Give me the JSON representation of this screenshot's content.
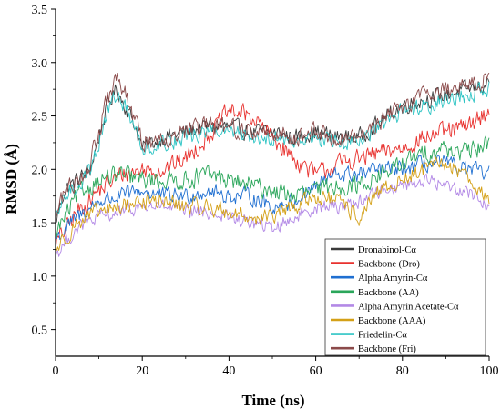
{
  "chart_data": {
    "type": "line",
    "title": "",
    "xlabel": "Time (ns)",
    "ylabel": "RMSD (Å)",
    "xlim": [
      0,
      100
    ],
    "ylim": [
      0.25,
      3.5
    ],
    "xticks": [
      0,
      20,
      40,
      60,
      80,
      100
    ],
    "yticks": [
      0.5,
      1.0,
      1.5,
      2.0,
      2.5,
      3.0,
      3.5
    ],
    "ytick_labels": [
      "0.5",
      "1.0",
      "1.5",
      "2.0",
      "2.5",
      "3.0",
      "3.5"
    ],
    "grid": false,
    "legend_position": "bottom-right",
    "series": [
      {
        "name": "Dronabinol-Cα",
        "color": "#3b3b3b",
        "noise": 0.07,
        "x": [
          0,
          2,
          5,
          8,
          10,
          12,
          14,
          16,
          18,
          20,
          25,
          30,
          35,
          40,
          45,
          50,
          55,
          60,
          65,
          70,
          75,
          80,
          85,
          90,
          95,
          100
        ],
        "y": [
          1.5,
          1.8,
          1.9,
          2.0,
          2.3,
          2.6,
          2.75,
          2.6,
          2.45,
          2.2,
          2.3,
          2.35,
          2.4,
          2.4,
          2.35,
          2.35,
          2.3,
          2.35,
          2.3,
          2.3,
          2.45,
          2.6,
          2.65,
          2.7,
          2.75,
          2.8
        ]
      },
      {
        "name": "Backbone (Dro)",
        "color": "#e8312e",
        "noise": 0.08,
        "x": [
          0,
          5,
          10,
          15,
          20,
          25,
          30,
          35,
          40,
          45,
          50,
          55,
          60,
          65,
          70,
          75,
          80,
          85,
          90,
          95,
          100
        ],
        "y": [
          1.3,
          1.6,
          1.8,
          1.95,
          2.0,
          2.0,
          2.1,
          2.3,
          2.55,
          2.5,
          2.3,
          2.1,
          1.95,
          2.05,
          2.1,
          2.15,
          2.2,
          2.3,
          2.35,
          2.4,
          2.55
        ]
      },
      {
        "name": "Alpha Amyrin-Cα",
        "color": "#1f6fd1",
        "noise": 0.07,
        "x": [
          0,
          5,
          10,
          15,
          20,
          25,
          30,
          35,
          40,
          45,
          50,
          55,
          60,
          65,
          70,
          75,
          80,
          85,
          90,
          95,
          100
        ],
        "y": [
          1.35,
          1.55,
          1.7,
          1.75,
          1.8,
          1.75,
          1.75,
          1.8,
          1.75,
          1.75,
          1.65,
          1.7,
          1.85,
          1.95,
          1.95,
          2.0,
          2.0,
          2.05,
          2.05,
          2.0,
          1.95
        ]
      },
      {
        "name": "Backbone (AA)",
        "color": "#2aa65a",
        "noise": 0.08,
        "x": [
          0,
          5,
          10,
          15,
          20,
          25,
          30,
          35,
          40,
          45,
          50,
          55,
          60,
          65,
          70,
          75,
          80,
          85,
          90,
          95,
          100
        ],
        "y": [
          1.4,
          1.75,
          1.9,
          1.95,
          1.9,
          1.9,
          1.9,
          1.95,
          1.9,
          1.85,
          1.8,
          1.75,
          1.8,
          1.85,
          1.85,
          1.95,
          2.05,
          2.15,
          2.2,
          2.15,
          2.25
        ]
      },
      {
        "name": "Alpha Amyrin Acetate-Cα",
        "color": "#b389e6",
        "noise": 0.06,
        "x": [
          0,
          5,
          10,
          15,
          20,
          25,
          30,
          35,
          40,
          45,
          50,
          55,
          60,
          65,
          70,
          75,
          80,
          85,
          90,
          95,
          100
        ],
        "y": [
          1.2,
          1.45,
          1.55,
          1.6,
          1.65,
          1.65,
          1.6,
          1.6,
          1.55,
          1.5,
          1.45,
          1.55,
          1.65,
          1.65,
          1.7,
          1.8,
          1.85,
          1.9,
          1.85,
          1.8,
          1.65
        ]
      },
      {
        "name": "Backbone (AAA)",
        "color": "#d4a017",
        "noise": 0.07,
        "x": [
          0,
          5,
          10,
          15,
          20,
          25,
          30,
          35,
          40,
          45,
          50,
          55,
          60,
          65,
          70,
          75,
          80,
          85,
          90,
          95,
          100
        ],
        "y": [
          1.25,
          1.5,
          1.6,
          1.65,
          1.7,
          1.7,
          1.65,
          1.65,
          1.6,
          1.55,
          1.55,
          1.65,
          1.75,
          1.7,
          1.55,
          1.8,
          1.9,
          2.0,
          2.05,
          1.95,
          1.7
        ]
      },
      {
        "name": "Friedelin-Cα",
        "color": "#2ec4c4",
        "noise": 0.07,
        "x": [
          0,
          2,
          5,
          8,
          10,
          12,
          14,
          16,
          18,
          20,
          25,
          30,
          35,
          40,
          45,
          50,
          55,
          60,
          65,
          70,
          75,
          80,
          85,
          90,
          95,
          100
        ],
        "y": [
          1.5,
          1.75,
          1.85,
          2.0,
          2.25,
          2.55,
          2.7,
          2.6,
          2.4,
          2.2,
          2.25,
          2.3,
          2.35,
          2.35,
          2.3,
          2.3,
          2.25,
          2.3,
          2.25,
          2.25,
          2.4,
          2.55,
          2.6,
          2.65,
          2.7,
          2.75
        ]
      },
      {
        "name": "Backbone (Fri)",
        "color": "#8b4a4a",
        "noise": 0.08,
        "x": [
          0,
          2,
          5,
          8,
          10,
          12,
          14,
          16,
          18,
          20,
          25,
          30,
          35,
          40,
          45,
          50,
          55,
          60,
          65,
          70,
          75,
          80,
          85,
          90,
          95,
          100
        ],
        "y": [
          1.55,
          1.8,
          1.9,
          2.05,
          2.35,
          2.65,
          2.85,
          2.7,
          2.5,
          2.25,
          2.3,
          2.35,
          2.4,
          2.4,
          2.35,
          2.35,
          2.3,
          2.35,
          2.3,
          2.3,
          2.45,
          2.6,
          2.7,
          2.75,
          2.8,
          2.85
        ]
      }
    ]
  }
}
